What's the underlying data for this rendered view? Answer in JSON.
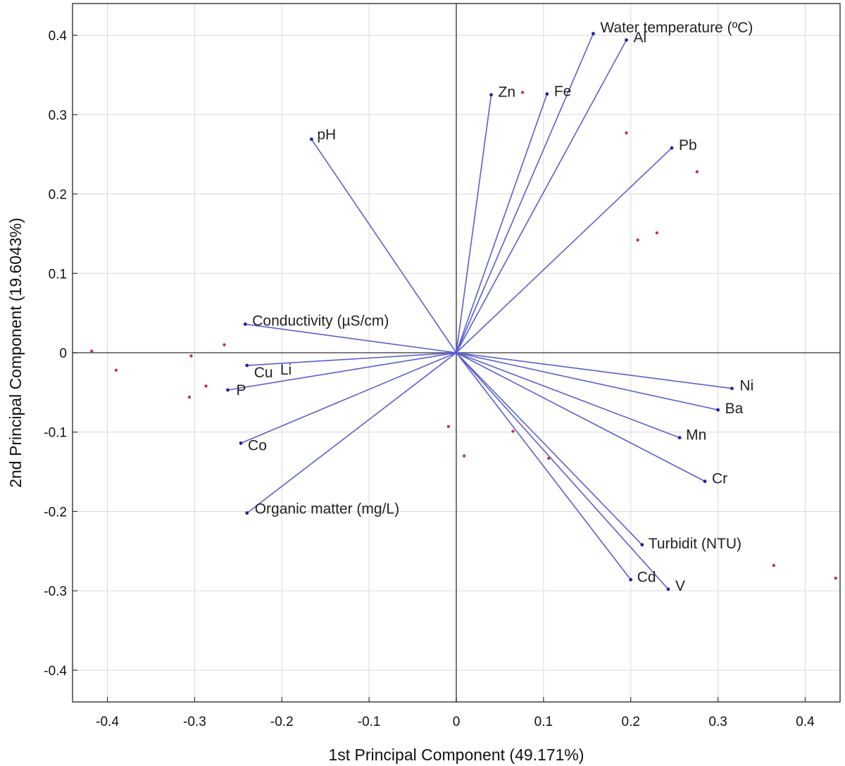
{
  "chart_data": {
    "type": "scatter",
    "subtype": "pca-biplot",
    "title": "",
    "xlabel": "1st Principal Component (49.171%)",
    "ylabel": "2nd Principal Component (19.6043%)",
    "xlim": [
      -0.44,
      0.44
    ],
    "ylim": [
      -0.44,
      0.44
    ],
    "xticks": [
      -0.4,
      -0.3,
      -0.2,
      -0.1,
      0,
      0.1,
      0.2,
      0.3,
      0.4
    ],
    "yticks": [
      -0.4,
      -0.3,
      -0.2,
      -0.1,
      0,
      0.1,
      0.2,
      0.3,
      0.4
    ],
    "xtick_labels": [
      "-0.4",
      "-0.3",
      "-0.2",
      "-0.1",
      "0",
      "0.1",
      "0.2",
      "0.3",
      "0.4"
    ],
    "ytick_labels": [
      "-0.4",
      "-0.3",
      "-0.2",
      "-0.1",
      "0",
      "0.1",
      "0.2",
      "0.3",
      "0.4"
    ],
    "grid": true,
    "colors": {
      "vector": "#5a5fd0",
      "vector_tip": "#1f1fb0",
      "score": "#c0364a"
    },
    "loadings": [
      {
        "label": "Water temperature (ºC)",
        "x": 0.157,
        "y": 0.402
      },
      {
        "label": "Al",
        "x": 0.195,
        "y": 0.394
      },
      {
        "label": "Zn",
        "x": 0.04,
        "y": 0.325
      },
      {
        "label": "Fe",
        "x": 0.104,
        "y": 0.326
      },
      {
        "label": "pH",
        "x": -0.166,
        "y": 0.269
      },
      {
        "label": "Pb",
        "x": 0.247,
        "y": 0.258
      },
      {
        "label": "Conductivity (µS/cm)",
        "x": -0.242,
        "y": 0.036
      },
      {
        "label": "Cu",
        "x": -0.24,
        "y": -0.016
      },
      {
        "label": "Li",
        "x": -0.21,
        "y": -0.014
      },
      {
        "label": "P",
        "x": -0.262,
        "y": -0.047
      },
      {
        "label": "Co",
        "x": -0.247,
        "y": -0.114
      },
      {
        "label": "Organic matter (mg/L)",
        "x": -0.24,
        "y": -0.202
      },
      {
        "label": "Ni",
        "x": 0.316,
        "y": -0.045
      },
      {
        "label": "Ba",
        "x": 0.3,
        "y": -0.072
      },
      {
        "label": "Mn",
        "x": 0.256,
        "y": -0.107
      },
      {
        "label": "Cr",
        "x": 0.285,
        "y": -0.162
      },
      {
        "label": "Turbidit (NTU)",
        "x": 0.213,
        "y": -0.242
      },
      {
        "label": "Cd",
        "x": 0.2,
        "y": -0.286
      },
      {
        "label": "V",
        "x": 0.243,
        "y": -0.298
      }
    ],
    "scores": [
      {
        "x": -0.418,
        "y": 0.002
      },
      {
        "x": -0.39,
        "y": -0.022
      },
      {
        "x": -0.304,
        "y": -0.004
      },
      {
        "x": -0.306,
        "y": -0.056
      },
      {
        "x": -0.287,
        "y": -0.042
      },
      {
        "x": -0.266,
        "y": 0.01
      },
      {
        "x": -0.009,
        "y": -0.093
      },
      {
        "x": 0.009,
        "y": -0.13
      },
      {
        "x": 0.065,
        "y": -0.099
      },
      {
        "x": 0.076,
        "y": 0.328
      },
      {
        "x": 0.106,
        "y": -0.133
      },
      {
        "x": 0.195,
        "y": 0.277
      },
      {
        "x": 0.208,
        "y": 0.142
      },
      {
        "x": 0.23,
        "y": 0.151
      },
      {
        "x": 0.276,
        "y": 0.228
      },
      {
        "x": 0.364,
        "y": -0.268
      },
      {
        "x": 0.435,
        "y": -0.284
      }
    ]
  }
}
